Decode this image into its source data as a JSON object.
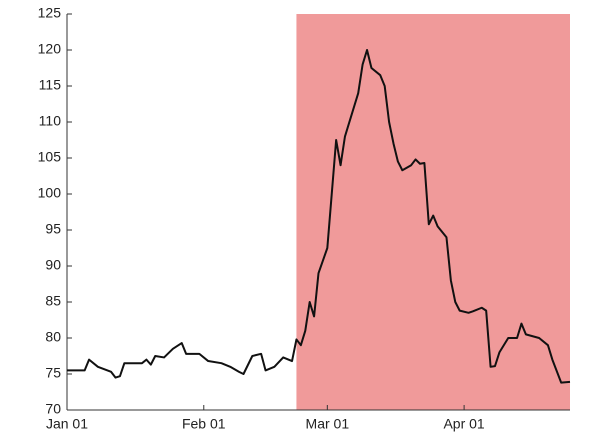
{
  "chart_data": {
    "type": "line",
    "x": [
      0,
      4,
      5,
      7,
      10,
      11,
      12,
      13,
      17,
      18,
      19,
      20,
      22,
      24,
      26,
      27,
      30,
      32,
      35,
      37,
      39,
      40,
      42,
      44,
      45,
      47,
      49,
      51,
      52,
      53,
      54,
      55,
      56,
      57,
      59,
      60,
      61,
      62,
      63,
      66,
      67,
      68,
      69,
      71,
      72,
      73,
      74,
      75,
      76,
      78,
      79,
      80,
      81,
      82,
      83,
      84,
      86,
      87,
      88,
      89,
      91,
      92,
      94,
      95,
      96,
      97,
      98,
      100,
      102,
      103,
      104,
      107,
      109,
      110,
      112,
      114
    ],
    "series": [
      {
        "color": "#111111",
        "values": [
          75.5,
          75.5,
          77,
          76,
          75.3,
          74.5,
          74.7,
          76.5,
          76.5,
          77,
          76.3,
          77.5,
          77.3,
          78.5,
          79.3,
          77.8,
          77.8,
          76.8,
          76.5,
          76,
          75.3,
          75,
          77.5,
          77.8,
          75.5,
          76,
          77.3,
          76.8,
          79.8,
          79,
          81,
          85,
          83,
          89,
          92.5,
          100,
          107.5,
          104,
          108,
          114,
          118,
          120,
          117.5,
          116.5,
          115,
          110,
          107,
          104.5,
          103.3,
          104,
          104.8,
          104.2,
          104.3,
          95.8,
          97,
          95.5,
          94,
          88,
          85,
          83.8,
          83.5,
          83.7,
          84.2,
          83.8,
          76,
          76.1,
          78,
          80,
          80,
          82,
          80.5,
          80,
          79,
          77,
          73.8,
          73.9
        ]
      }
    ],
    "highlight": {
      "x": [
        52,
        114
      ],
      "color": "#f09a9a"
    },
    "xlim": [
      0,
      114
    ],
    "xticks": [
      {
        "value": 0,
        "label": "Jan 01"
      },
      {
        "value": 31,
        "label": "Feb 01"
      },
      {
        "value": 59,
        "label": "Mar 01"
      },
      {
        "value": 90,
        "label": "Apr 01"
      }
    ],
    "ylim": [
      70,
      125
    ],
    "yticks": [
      70,
      75,
      80,
      85,
      90,
      95,
      100,
      105,
      110,
      115,
      120,
      125
    ]
  }
}
